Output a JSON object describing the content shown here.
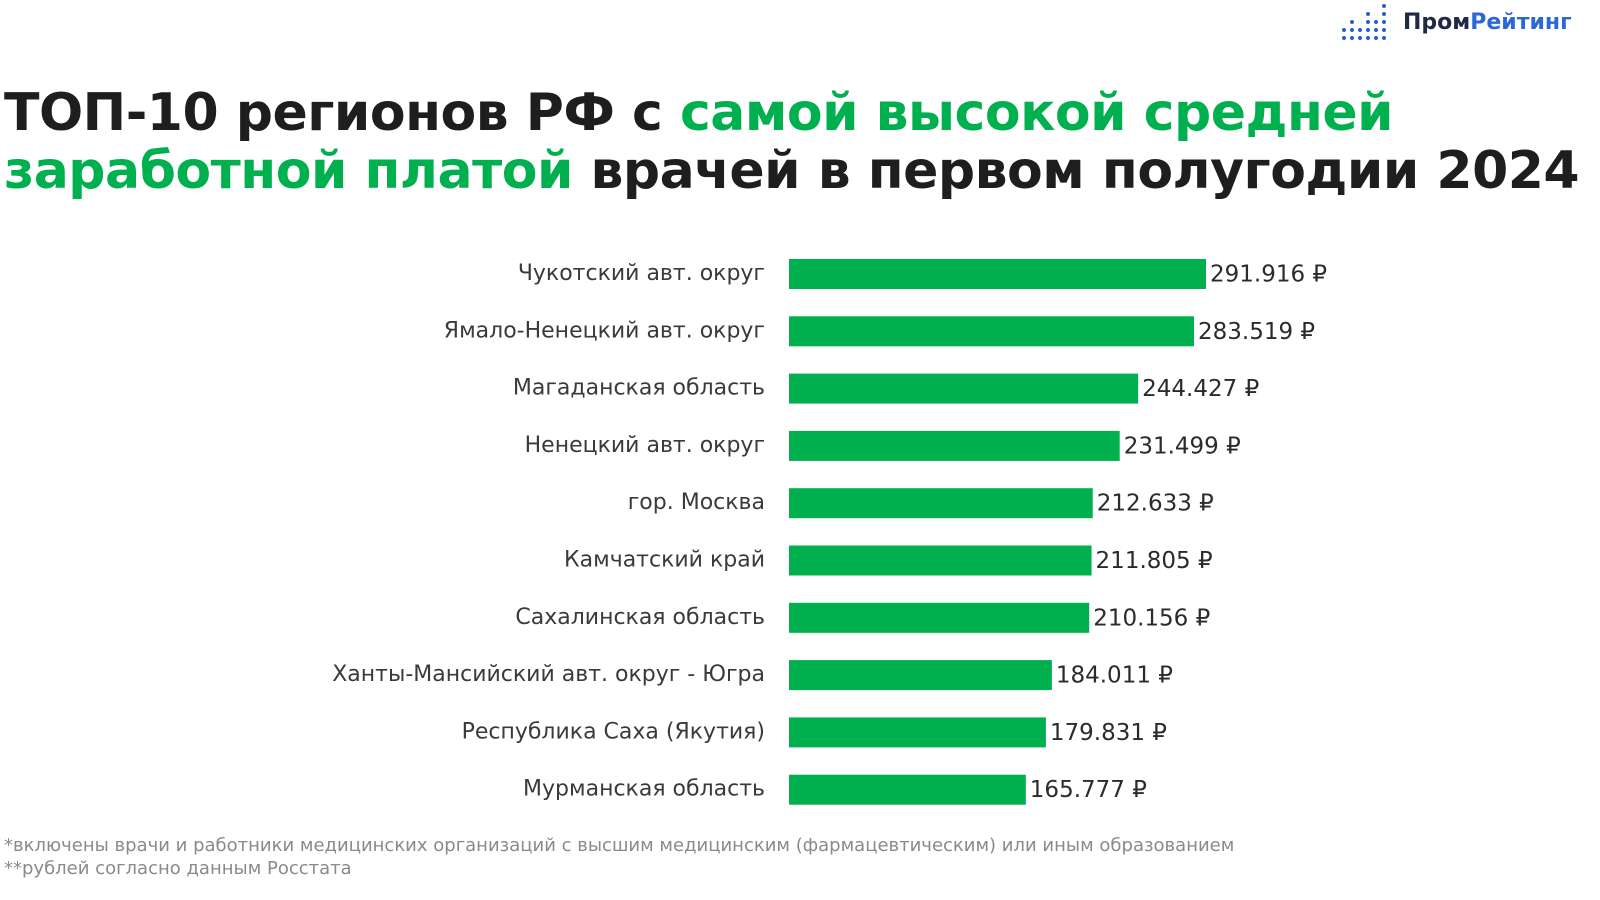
{
  "logo": {
    "part1": "Пром",
    "part2": "Рейтинг",
    "brand_color": "#2b67d6"
  },
  "title": {
    "part1": "ТОП-10 регионов РФ с ",
    "accent1": "самой высокой средней",
    "accent2": "заработной платой",
    "part2": " врачей в первом полугодии 2024"
  },
  "chart_data": {
    "type": "bar",
    "orientation": "horizontal",
    "bar_color": "#00b04f",
    "categories": [
      "Чукотский авт. округ",
      "Ямало-Ненецкий авт. округ",
      "Магаданская область",
      "Ненецкий авт. округ",
      "гор. Москва",
      "Камчатский край",
      "Сахалинская область",
      "Ханты-Мансийский авт. округ - Югра",
      "Республика Саха (Якутия)",
      "Мурманская область"
    ],
    "values": [
      291916,
      283519,
      244427,
      231499,
      212633,
      211805,
      210156,
      184011,
      179831,
      165777
    ],
    "value_labels": [
      "291.916 ₽",
      "283.519 ₽",
      "244.427 ₽",
      "231.499 ₽",
      "212.633 ₽",
      "211.805 ₽",
      "210.156 ₽",
      "184.011 ₽",
      "179.831 ₽",
      "165.777 ₽"
    ],
    "xlim": [
      0,
      291916
    ],
    "grid": false,
    "legend": false
  },
  "footnotes": [
    "*включены врачи и работники медицинских организаций с высшим медицинским (фармацевтическим) или иным образованием",
    "**рублей согласно данным Росстата"
  ]
}
